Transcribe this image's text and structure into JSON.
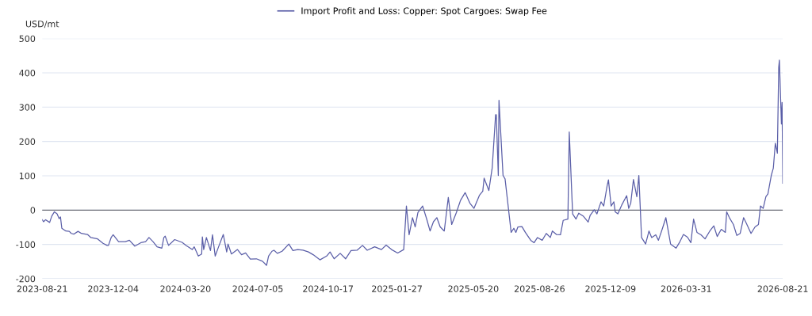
{
  "chart_data": {
    "type": "line",
    "ylabel": "USD/mt",
    "x": [
      "2023-08-21",
      "2023-08-23",
      "2023-08-26",
      "2023-09-01",
      "2023-09-04",
      "2023-09-08",
      "2023-09-12",
      "2023-09-15",
      "2023-09-17",
      "2023-09-19",
      "2023-09-25",
      "2023-09-30",
      "2023-10-03",
      "2023-10-07",
      "2023-10-13",
      "2023-10-18",
      "2023-10-27",
      "2023-11-01",
      "2023-11-11",
      "2023-11-19",
      "2023-11-25",
      "2023-11-27",
      "2023-12-01",
      "2023-12-04",
      "2023-12-12",
      "2023-12-22",
      "2023-12-28",
      "2024-01-05",
      "2024-01-14",
      "2024-01-21",
      "2024-01-26",
      "2024-02-01",
      "2024-02-07",
      "2024-02-14",
      "2024-02-17",
      "2024-02-19",
      "2024-02-24",
      "2024-03-04",
      "2024-03-15",
      "2024-03-21",
      "2024-03-30",
      "2024-04-02",
      "2024-04-08",
      "2024-04-13",
      "2024-04-14",
      "2024-04-16",
      "2024-04-20",
      "2024-04-26",
      "2024-04-29",
      "2024-05-03",
      "2024-05-08",
      "2024-05-15",
      "2024-05-20",
      "2024-05-22",
      "2024-05-27",
      "2024-06-05",
      "2024-06-11",
      "2024-06-17",
      "2024-06-24",
      "2024-07-03",
      "2024-07-12",
      "2024-07-18",
      "2024-07-21",
      "2024-07-26",
      "2024-07-29",
      "2024-08-03",
      "2024-08-10",
      "2024-08-20",
      "2024-08-26",
      "2024-09-02",
      "2024-09-10",
      "2024-09-18",
      "2024-09-25",
      "2024-10-05",
      "2024-10-15",
      "2024-10-20",
      "2024-10-26",
      "2024-11-04",
      "2024-11-12",
      "2024-11-20",
      "2024-11-29",
      "2024-12-07",
      "2024-12-14",
      "2024-12-25",
      "2025-01-04",
      "2025-01-11",
      "2025-01-19",
      "2025-01-28",
      "2025-02-06",
      "2025-02-10",
      "2025-02-14",
      "2025-02-19",
      "2025-02-23",
      "2025-02-27",
      "2025-03-06",
      "2025-03-12",
      "2025-03-17",
      "2025-03-22",
      "2025-03-27",
      "2025-04-01",
      "2025-04-07",
      "2025-04-13",
      "2025-04-18",
      "2025-04-25",
      "2025-05-01",
      "2025-05-08",
      "2025-05-15",
      "2025-05-21",
      "2025-05-29",
      "2025-06-03",
      "2025-06-05",
      "2025-06-12",
      "2025-06-17",
      "2025-06-22",
      "2025-06-23",
      "2025-06-26",
      "2025-06-27",
      "2025-07-03",
      "2025-07-06",
      "2025-07-15",
      "2025-07-19",
      "2025-07-22",
      "2025-07-25",
      "2025-07-31",
      "2025-08-05",
      "2025-08-13",
      "2025-08-18",
      "2025-08-23",
      "2025-08-30",
      "2025-09-05",
      "2025-09-11",
      "2025-09-14",
      "2025-09-20",
      "2025-09-26",
      "2025-09-30",
      "2025-10-07",
      "2025-10-09",
      "2025-10-14",
      "2025-10-19",
      "2025-10-23",
      "2025-10-30",
      "2025-11-06",
      "2025-11-09",
      "2025-11-15",
      "2025-11-19",
      "2025-11-25",
      "2025-11-29",
      "2025-12-04",
      "2025-12-06",
      "2025-12-10",
      "2025-12-14",
      "2025-12-16",
      "2025-12-20",
      "2025-12-26",
      "2026-01-02",
      "2026-01-05",
      "2026-01-08",
      "2026-01-12",
      "2026-01-17",
      "2026-01-20",
      "2026-01-24",
      "2026-01-30",
      "2026-02-04",
      "2026-02-08",
      "2026-02-14",
      "2026-02-18",
      "2026-02-24",
      "2026-03-01",
      "2026-03-08",
      "2026-03-16",
      "2026-03-21",
      "2026-03-27",
      "2026-04-02",
      "2026-04-07",
      "2026-04-11",
      "2026-04-16",
      "2026-04-22",
      "2026-04-28",
      "2026-05-05",
      "2026-05-11",
      "2026-05-16",
      "2026-05-22",
      "2026-05-28",
      "2026-05-30",
      "2026-06-03",
      "2026-06-09",
      "2026-06-14",
      "2026-06-19",
      "2026-06-24",
      "2026-06-28",
      "2026-07-05",
      "2026-07-11",
      "2026-07-16",
      "2026-07-19",
      "2026-07-23",
      "2026-07-27",
      "2026-07-30",
      "2026-08-04",
      "2026-08-07",
      "2026-08-10",
      "2026-08-13",
      "2026-08-15",
      "2026-08-16",
      "2026-08-19",
      "2026-08-20",
      "2026-08-21"
    ],
    "series": [
      {
        "name": "Import Profit and Loss: Copper: Spot Cargoes: Swap Fee",
        "color": "#5b5fa8",
        "values": [
          -28,
          -34,
          -28,
          -36,
          -18,
          -5,
          -11,
          -25,
          -20,
          -53,
          -61,
          -62,
          -68,
          -70,
          -62,
          -68,
          -71,
          -80,
          -84,
          -97,
          -103,
          -103,
          -80,
          -72,
          -92,
          -92,
          -88,
          -105,
          -95,
          -92,
          -80,
          -92,
          -107,
          -111,
          -80,
          -76,
          -103,
          -86,
          -94,
          -103,
          -115,
          -107,
          -134,
          -128,
          -78,
          -115,
          -80,
          -118,
          -72,
          -134,
          -107,
          -71,
          -122,
          -99,
          -128,
          -115,
          -130,
          -125,
          -143,
          -142,
          -149,
          -161,
          -134,
          -120,
          -117,
          -126,
          -120,
          -99,
          -118,
          -115,
          -117,
          -122,
          -130,
          -145,
          -134,
          -122,
          -142,
          -126,
          -142,
          -118,
          -117,
          -103,
          -117,
          -107,
          -115,
          -102,
          -115,
          -125,
          -115,
          12,
          -72,
          -22,
          -49,
          -7,
          12,
          -26,
          -61,
          -34,
          -22,
          -49,
          -61,
          37,
          -42,
          -7,
          28,
          51,
          20,
          5,
          43,
          55,
          93,
          57,
          124,
          278,
          278,
          101,
          320,
          101,
          91,
          -65,
          -53,
          -65,
          -49,
          -48,
          -65,
          -88,
          -95,
          -80,
          -88,
          -68,
          -80,
          -61,
          -71,
          -72,
          -30,
          -26,
          228,
          -11,
          -26,
          -9,
          -18,
          -35,
          -15,
          1,
          -11,
          24,
          12,
          70,
          88,
          12,
          24,
          -5,
          -11,
          16,
          42,
          5,
          20,
          89,
          39,
          101,
          -80,
          -99,
          -61,
          -80,
          -72,
          -88,
          -53,
          -22,
          -99,
          -111,
          -95,
          -71,
          -79,
          -95,
          -26,
          -65,
          -72,
          -84,
          -61,
          -46,
          -77,
          -56,
          -65,
          -5,
          -22,
          -42,
          -74,
          -68,
          -22,
          -38,
          -68,
          -49,
          -42,
          12,
          5,
          39,
          47,
          101,
          122,
          195,
          166,
          416,
          437,
          251,
          314,
          78
        ]
      }
    ],
    "xlim": [
      "2023-08-21",
      "2026-08-21"
    ],
    "xticks": [
      "2023-08-21",
      "2023-12-04",
      "2024-03-20",
      "2024-07-05",
      "2024-10-17",
      "2025-01-27",
      "2025-05-20",
      "2025-08-26",
      "2025-12-09",
      "2026-03-31",
      "2026-08-21"
    ],
    "ylim": [
      -200,
      500
    ],
    "yticks": [
      -200,
      -100,
      0,
      100,
      200,
      300,
      400,
      500
    ],
    "ref_lines": [
      {
        "axis": "y",
        "value": 0,
        "color": "#6e7079"
      }
    ],
    "grid": "y",
    "legend": "top",
    "marker": "none",
    "line_style": "solid"
  }
}
